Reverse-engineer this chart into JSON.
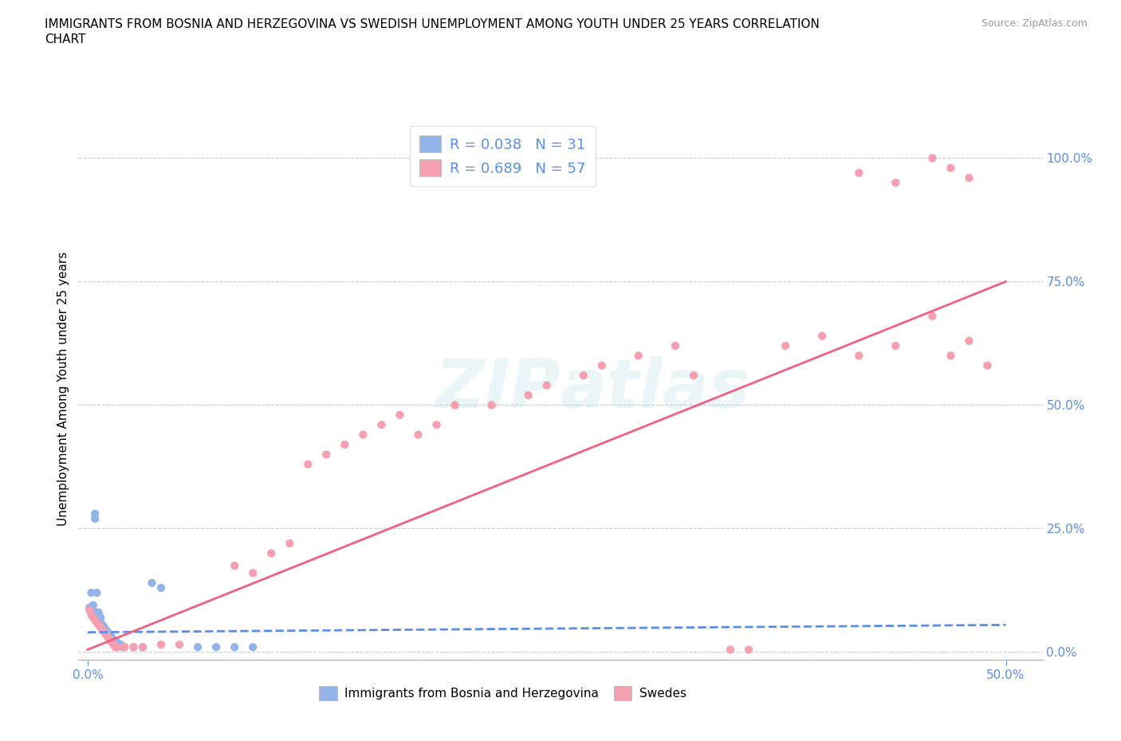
{
  "title": "IMMIGRANTS FROM BOSNIA AND HERZEGOVINA VS SWEDISH UNEMPLOYMENT AMONG YOUTH UNDER 25 YEARS CORRELATION\nCHART",
  "source": "Source: ZipAtlas.com",
  "ylabel": "Unemployment Among Youth under 25 years",
  "watermark_part1": "ZIP",
  "watermark_part2": "atlas",
  "legend_blue_label": "R = 0.038   N = 31",
  "legend_pink_label": "R = 0.689   N = 57",
  "legend_bottom_blue": "Immigrants from Bosnia and Herzegovina",
  "legend_bottom_pink": "Swedes",
  "blue_color": "#92b4e8",
  "pink_color": "#f5a0b0",
  "blue_line_color": "#5b8ee6",
  "pink_line_color": "#f06080",
  "blue_scatter": [
    [
      0.001,
      0.09
    ],
    [
      0.002,
      0.12
    ],
    [
      0.003,
      0.085
    ],
    [
      0.003,
      0.095
    ],
    [
      0.004,
      0.28
    ],
    [
      0.004,
      0.27
    ],
    [
      0.005,
      0.12
    ],
    [
      0.006,
      0.08
    ],
    [
      0.007,
      0.06
    ],
    [
      0.007,
      0.07
    ],
    [
      0.008,
      0.055
    ],
    [
      0.009,
      0.05
    ],
    [
      0.01,
      0.045
    ],
    [
      0.011,
      0.04
    ],
    [
      0.012,
      0.035
    ],
    [
      0.013,
      0.03
    ],
    [
      0.014,
      0.025
    ],
    [
      0.015,
      0.02
    ],
    [
      0.016,
      0.02
    ],
    [
      0.017,
      0.015
    ],
    [
      0.018,
      0.015
    ],
    [
      0.019,
      0.01
    ],
    [
      0.02,
      0.01
    ],
    [
      0.025,
      0.01
    ],
    [
      0.03,
      0.01
    ],
    [
      0.035,
      0.14
    ],
    [
      0.04,
      0.13
    ],
    [
      0.06,
      0.01
    ],
    [
      0.07,
      0.01
    ],
    [
      0.08,
      0.01
    ],
    [
      0.09,
      0.01
    ]
  ],
  "pink_scatter": [
    [
      0.001,
      0.085
    ],
    [
      0.002,
      0.075
    ],
    [
      0.003,
      0.07
    ],
    [
      0.004,
      0.065
    ],
    [
      0.005,
      0.06
    ],
    [
      0.006,
      0.055
    ],
    [
      0.007,
      0.05
    ],
    [
      0.008,
      0.045
    ],
    [
      0.009,
      0.04
    ],
    [
      0.01,
      0.035
    ],
    [
      0.011,
      0.03
    ],
    [
      0.012,
      0.025
    ],
    [
      0.013,
      0.02
    ],
    [
      0.014,
      0.015
    ],
    [
      0.015,
      0.01
    ],
    [
      0.016,
      0.01
    ],
    [
      0.02,
      0.01
    ],
    [
      0.025,
      0.01
    ],
    [
      0.03,
      0.01
    ],
    [
      0.04,
      0.015
    ],
    [
      0.05,
      0.015
    ],
    [
      0.08,
      0.175
    ],
    [
      0.09,
      0.16
    ],
    [
      0.1,
      0.2
    ],
    [
      0.11,
      0.22
    ],
    [
      0.12,
      0.38
    ],
    [
      0.13,
      0.4
    ],
    [
      0.14,
      0.42
    ],
    [
      0.15,
      0.44
    ],
    [
      0.16,
      0.46
    ],
    [
      0.17,
      0.48
    ],
    [
      0.18,
      0.44
    ],
    [
      0.19,
      0.46
    ],
    [
      0.2,
      0.5
    ],
    [
      0.22,
      0.5
    ],
    [
      0.24,
      0.52
    ],
    [
      0.25,
      0.54
    ],
    [
      0.27,
      0.56
    ],
    [
      0.28,
      0.58
    ],
    [
      0.3,
      0.6
    ],
    [
      0.32,
      0.62
    ],
    [
      0.33,
      0.56
    ],
    [
      0.35,
      0.005
    ],
    [
      0.36,
      0.005
    ],
    [
      0.38,
      0.62
    ],
    [
      0.4,
      0.64
    ],
    [
      0.42,
      0.6
    ],
    [
      0.44,
      0.62
    ],
    [
      0.46,
      0.68
    ],
    [
      0.47,
      0.6
    ],
    [
      0.48,
      0.63
    ],
    [
      0.49,
      0.58
    ],
    [
      0.42,
      0.97
    ],
    [
      0.44,
      0.95
    ],
    [
      0.46,
      1.0
    ],
    [
      0.47,
      0.98
    ],
    [
      0.48,
      0.96
    ]
  ],
  "blue_trendline_x": [
    0.0,
    0.5
  ],
  "blue_trendline_y": [
    0.04,
    0.055
  ],
  "pink_trendline_x": [
    0.0,
    0.5
  ],
  "pink_trendline_y": [
    0.005,
    0.75
  ],
  "xlim": [
    -0.005,
    0.52
  ],
  "ylim": [
    -0.015,
    1.08
  ],
  "ytick_values": [
    0.0,
    0.25,
    0.5,
    0.75,
    1.0
  ],
  "ytick_labels": [
    "0.0%",
    "25.0%",
    "50.0%",
    "75.0%",
    "100.0%"
  ],
  "xtick_values": [
    0.0,
    0.5
  ],
  "xtick_labels": [
    "0.0%",
    "50.0%"
  ],
  "grid_yticks": [
    0.25,
    0.5,
    0.75,
    1.0
  ]
}
